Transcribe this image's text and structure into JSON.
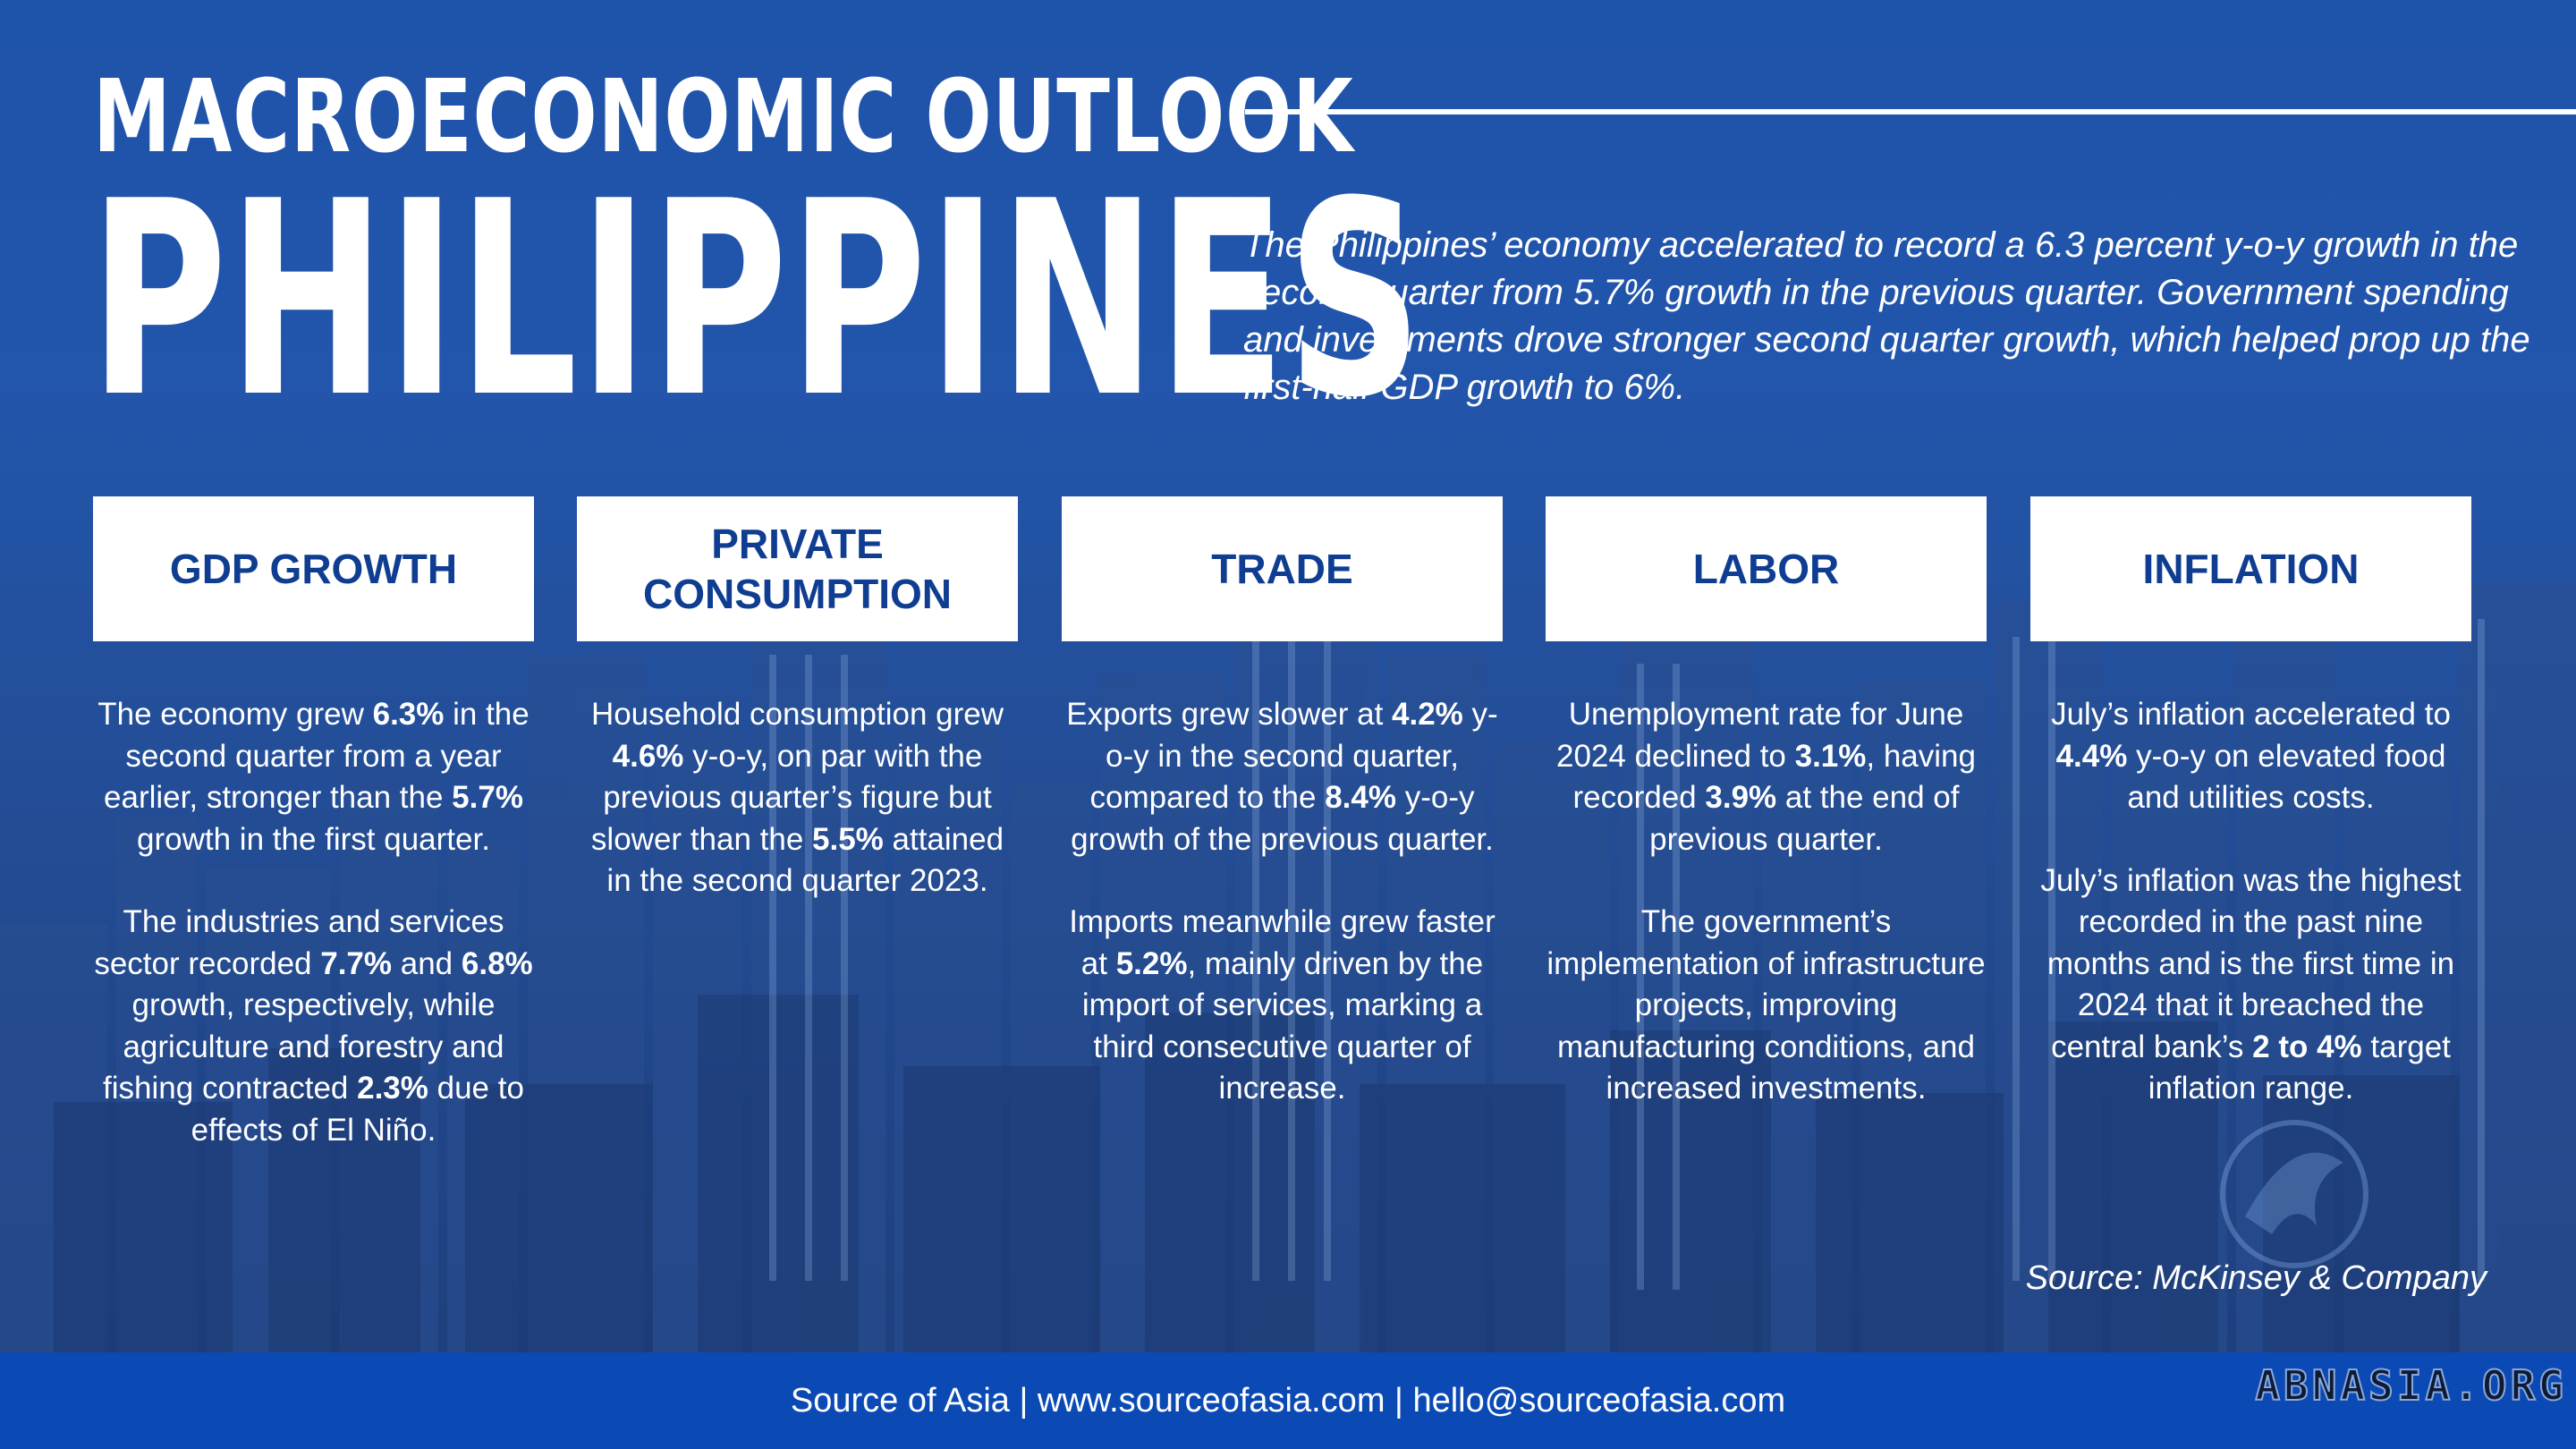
{
  "header": {
    "title": "MACROECONOMIC OUTLOOK",
    "country": "PHILIPPINES",
    "intro": "The Philippines’ economy accelerated to record a 6.3 percent y-o-y growth in the second quarter from 5.7% growth in the previous quarter. Government spending and investments drove stronger second quarter growth, which helped prop up the first-half GDP growth to 6%."
  },
  "cards": [
    {
      "title": "GDP GROWTH",
      "paragraphs": [
        [
          "The economy grew ",
          {
            "b": "6.3%"
          },
          " in the second quarter from a year earlier, stronger than the ",
          {
            "b": "5.7%"
          },
          " growth in the first quarter."
        ],
        [
          "The industries and services sector recorded ",
          {
            "b": "7.7%"
          },
          " and ",
          {
            "b": "6.8%"
          },
          " growth, respectively, while agriculture and forestry and fishing contracted ",
          {
            "b": "2.3%"
          },
          " due to effects of El Niño."
        ]
      ]
    },
    {
      "title": "PRIVATE CONSUMPTION",
      "paragraphs": [
        [
          "Household consumption grew ",
          {
            "b": "4.6%"
          },
          " y-o-y, on par with the previous quarter’s figure but slower than the ",
          {
            "b": "5.5%"
          },
          " attained in the second quarter 2023."
        ]
      ]
    },
    {
      "title": "TRADE",
      "paragraphs": [
        [
          "Exports grew slower at ",
          {
            "b": "4.2%"
          },
          " y-o-y in the second quarter, compared to the ",
          {
            "b": "8.4%"
          },
          " y-o-y growth of the previous quarter."
        ],
        [
          "Imports meanwhile grew faster at ",
          {
            "b": "5.2%"
          },
          ", mainly driven by the import of services, marking a third consecutive quarter of increase."
        ]
      ]
    },
    {
      "title": "LABOR",
      "paragraphs": [
        [
          "Unemployment rate for June 2024 declined to ",
          {
            "b": "3.1%"
          },
          ", having recorded ",
          {
            "b": "3.9%"
          },
          " at the end of previous quarter."
        ],
        [
          "The government’s implementation of infrastructure projects, improving manufacturing conditions, and increased investments."
        ]
      ]
    },
    {
      "title": "INFLATION",
      "paragraphs": [
        [
          "July’s inflation accelerated to ",
          {
            "b": "4.4%"
          },
          " y-o-y on elevated food and utilities costs."
        ],
        [
          "July’s inflation was the highest recorded in the past nine months and is the first time in 2024 that it breached the central bank’s ",
          {
            "b": "2 to 4%"
          },
          " target inflation range."
        ]
      ]
    }
  ],
  "source": "Source: McKinsey & Company",
  "footer": "Source of Asia | www.sourceofasia.com | hello@sourceofasia.com",
  "watermark": "ABNASIA.ORG",
  "colors": {
    "background_blue": "#2256ac",
    "card_text": "#0f3d91",
    "footer_bar": "#0b4ab5",
    "text": "#ffffff"
  }
}
